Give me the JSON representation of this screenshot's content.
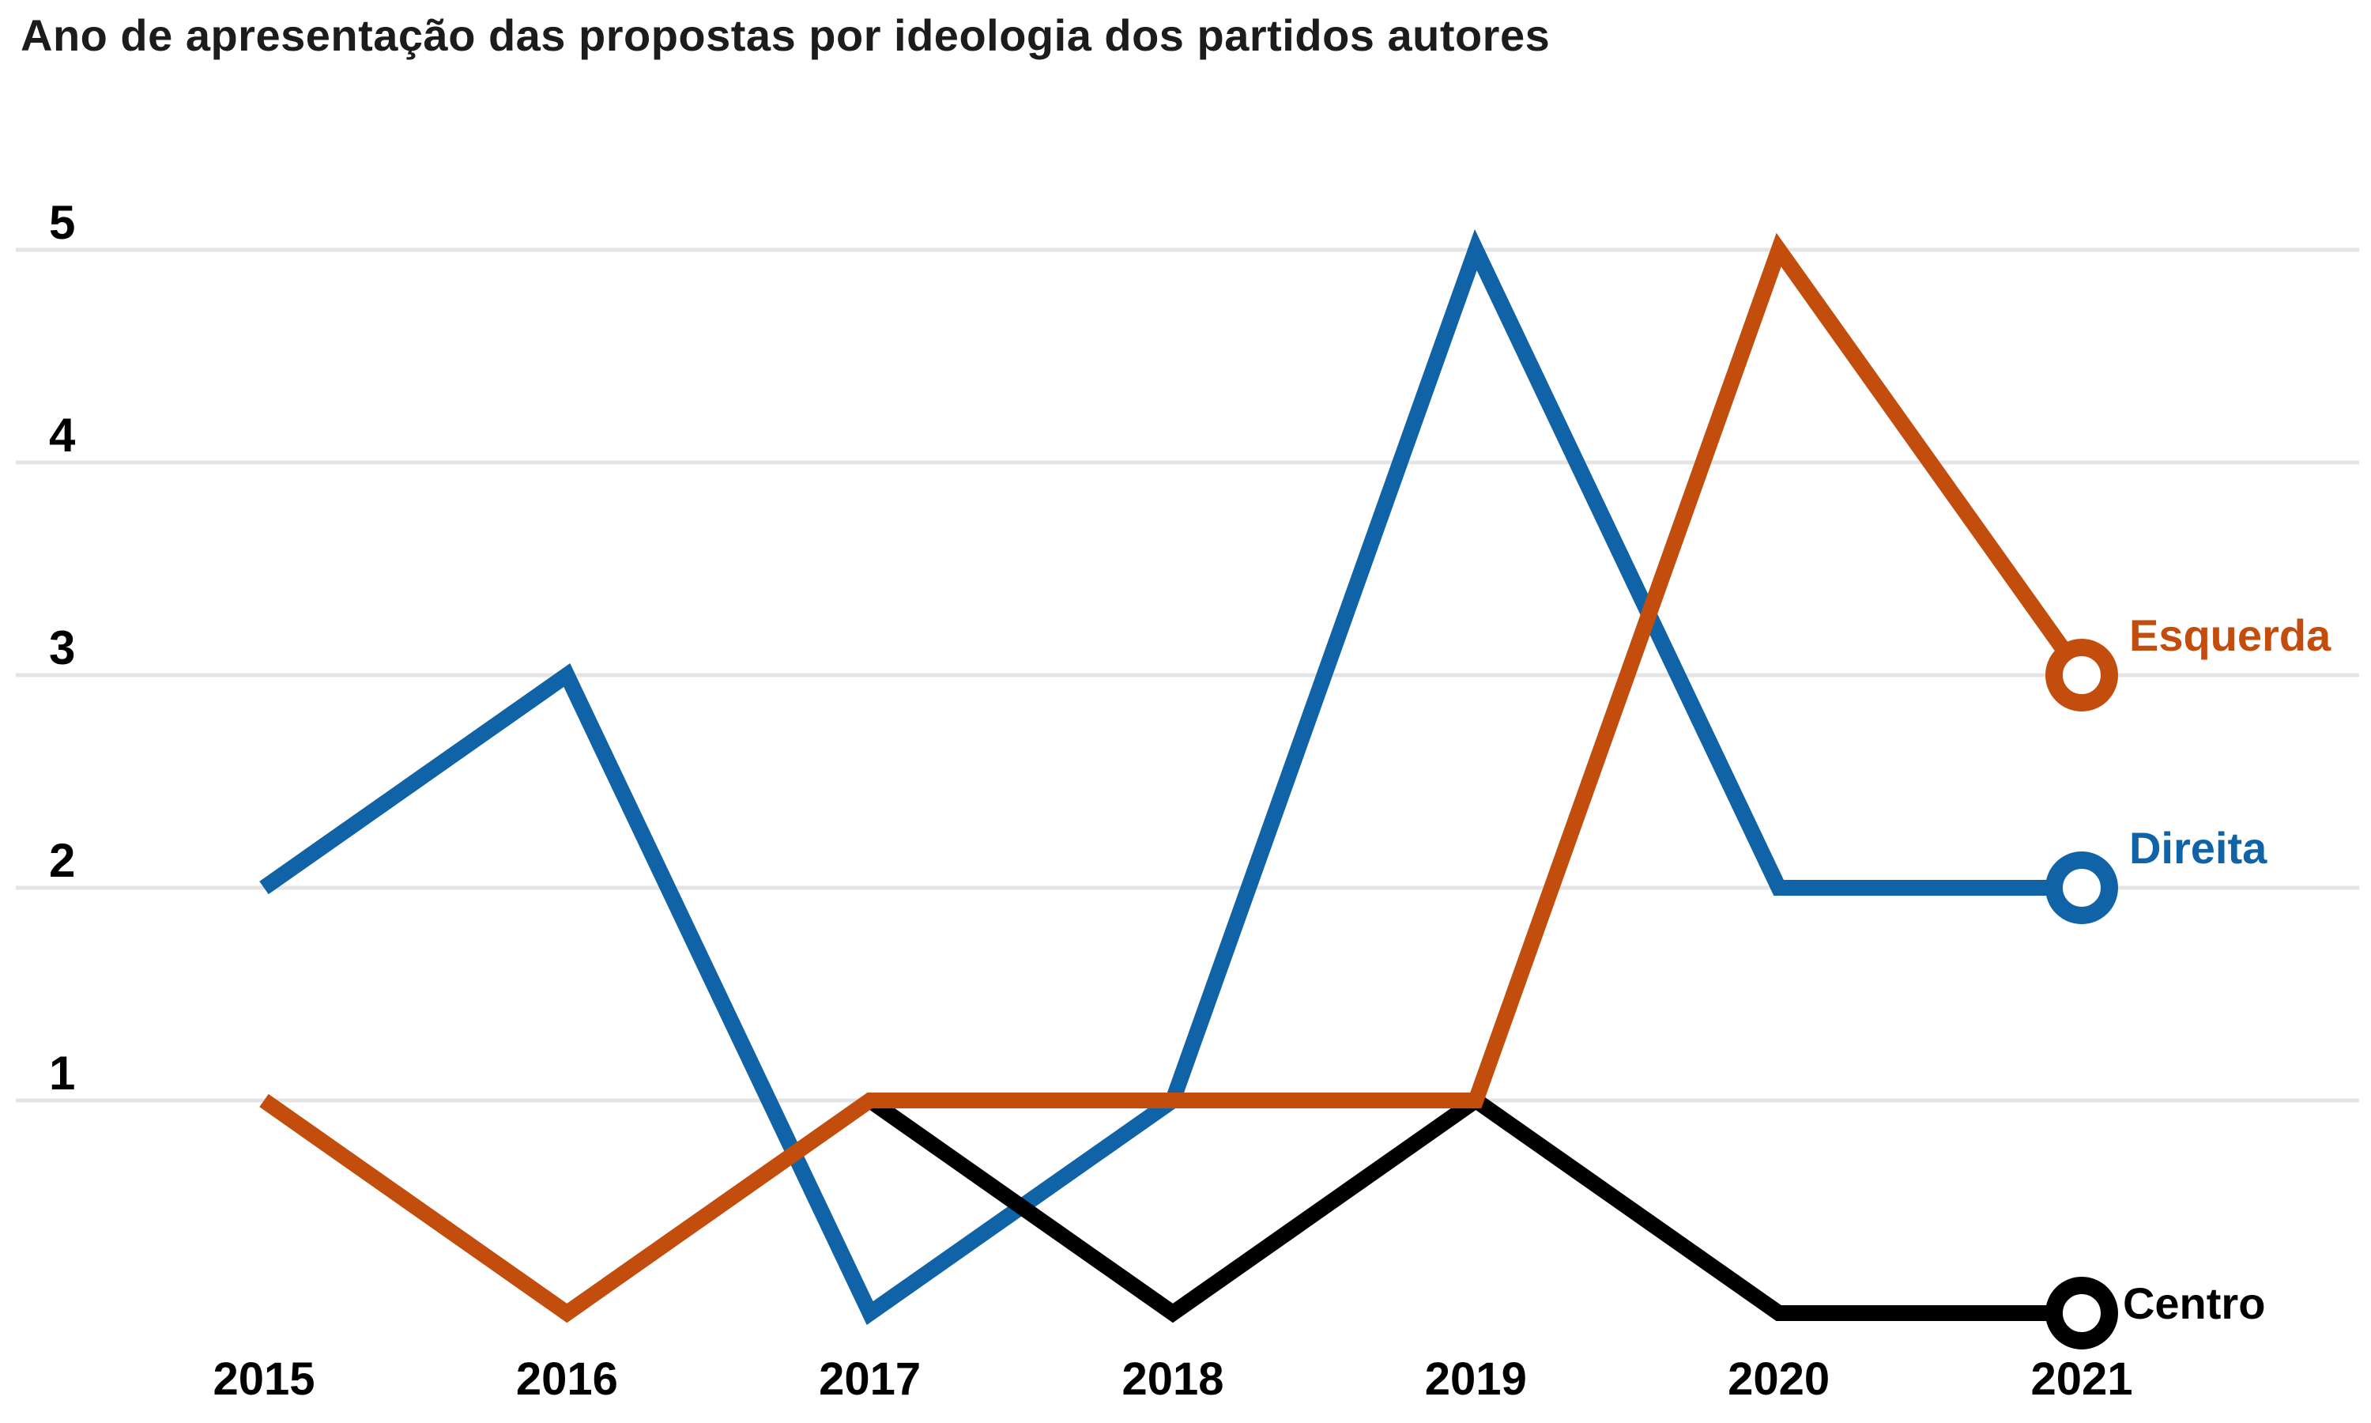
{
  "chart_data": {
    "type": "line",
    "title": "Ano de apresentação das propostas por ideologia dos partidos autores",
    "x": [
      2015,
      2016,
      2017,
      2018,
      2019,
      2020,
      2021
    ],
    "x_tick_labels": [
      "2015",
      "2016",
      "2017",
      "2018",
      "2019",
      "2020",
      "2021"
    ],
    "y_tick_labels": [
      "5",
      "4",
      "3",
      "2",
      "1"
    ],
    "yticks": [
      5,
      4,
      3,
      2,
      1
    ],
    "ylim": [
      0,
      5
    ],
    "grid": "horizontal",
    "grid_color": "#e4e4e4",
    "legend_position": "end-of-line labels with open circle markers",
    "series": [
      {
        "name": "Direita",
        "color": "#0f63a6",
        "x": [
          2015,
          2016,
          2017,
          2018,
          2019,
          2020,
          2021
        ],
        "values": [
          2,
          3,
          0,
          1,
          5,
          2,
          2
        ]
      },
      {
        "name": "Centro",
        "color": "#000000",
        "x": [
          2017,
          2018,
          2019,
          2020,
          2021
        ],
        "values": [
          1,
          0,
          1,
          0,
          0
        ]
      },
      {
        "name": "Esquerda",
        "color": "#c24d0d",
        "x": [
          2015,
          2016,
          2017,
          2018,
          2019,
          2020,
          2021
        ],
        "values": [
          1,
          0,
          1,
          1,
          1,
          5,
          3
        ]
      }
    ]
  }
}
